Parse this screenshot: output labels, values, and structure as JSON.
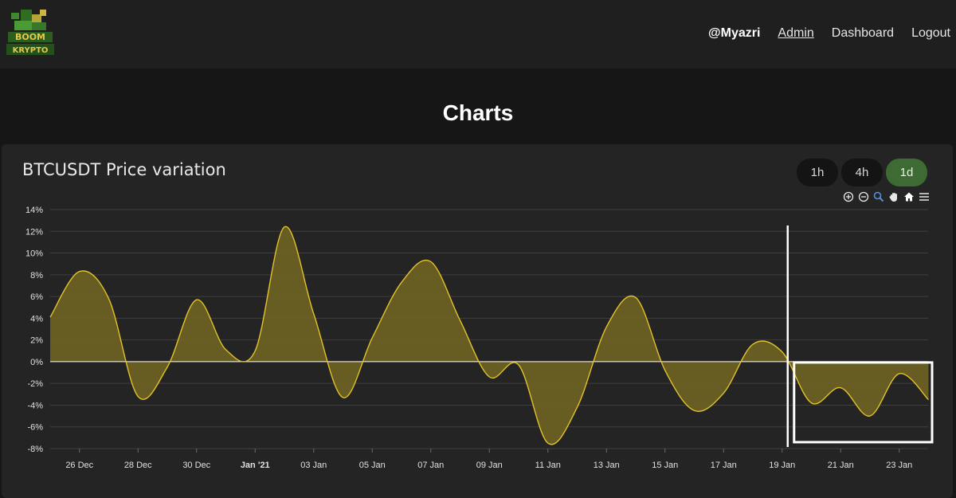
{
  "nav": {
    "user": "@Myazri",
    "links": [
      "Admin",
      "Dashboard",
      "Logout"
    ],
    "logo_alt": "Boom Krypto logo",
    "logo_text": [
      "BOOM",
      "KRYPTO"
    ]
  },
  "page": {
    "title": "Charts"
  },
  "card": {
    "title": "BTCUSDT Price variation",
    "timeframes": [
      "1h",
      "4h",
      "1d"
    ],
    "active_timeframe": "1d",
    "tools": [
      "zoom-in-icon",
      "zoom-out-icon",
      "zoom-selection-icon",
      "pan-hand-icon",
      "reset-home-icon",
      "menu-icon"
    ]
  },
  "chart_data": {
    "type": "area",
    "title": "",
    "xlabel": "",
    "ylabel": "",
    "ylim": [
      -8,
      14
    ],
    "y_ticks": [
      "14%",
      "12%",
      "10%",
      "8%",
      "6%",
      "4%",
      "2%",
      "0%",
      "-2%",
      "-4%",
      "-6%",
      "-8%"
    ],
    "x_tick_labels": [
      "26 Dec",
      "28 Dec",
      "30 Dec",
      "Jan '21",
      "03 Jan",
      "05 Jan",
      "07 Jan",
      "09 Jan",
      "11 Jan",
      "13 Jan",
      "15 Jan",
      "17 Jan",
      "19 Jan",
      "21 Jan",
      "23 Jan"
    ],
    "x": [
      "2020-12-25",
      "2020-12-26",
      "2020-12-27",
      "2020-12-28",
      "2020-12-29",
      "2020-12-30",
      "2020-12-31",
      "2021-01-01",
      "2021-01-02",
      "2021-01-03",
      "2021-01-04",
      "2021-01-05",
      "2021-01-06",
      "2021-01-07",
      "2021-01-08",
      "2021-01-09",
      "2021-01-10",
      "2021-01-11",
      "2021-01-12",
      "2021-01-13",
      "2021-01-14",
      "2021-01-15",
      "2021-01-16",
      "2021-01-17",
      "2021-01-18",
      "2021-01-19",
      "2021-01-20",
      "2021-01-21",
      "2021-01-22",
      "2021-01-23",
      "2021-01-24"
    ],
    "values": [
      4.1,
      8.3,
      5.8,
      -3.2,
      -0.5,
      5.7,
      1.1,
      1.0,
      12.4,
      4.4,
      -3.3,
      2.2,
      7.3,
      9.2,
      3.8,
      -1.4,
      -0.3,
      -7.5,
      -4.2,
      3.2,
      5.9,
      -0.8,
      -4.5,
      -2.9,
      1.6,
      0.9,
      -3.8,
      -2.4,
      -5.0,
      -1.1,
      -3.5
    ],
    "colors": {
      "line": "#e3c22b",
      "fill": "#6b6124",
      "zero_line": "#ffffff",
      "grid": "#3f3f3f"
    },
    "annotations": {
      "vertical_marker": "2021-01-19",
      "highlight_box": [
        "2021-01-19",
        "2021-01-24"
      ]
    },
    "grid": true
  }
}
